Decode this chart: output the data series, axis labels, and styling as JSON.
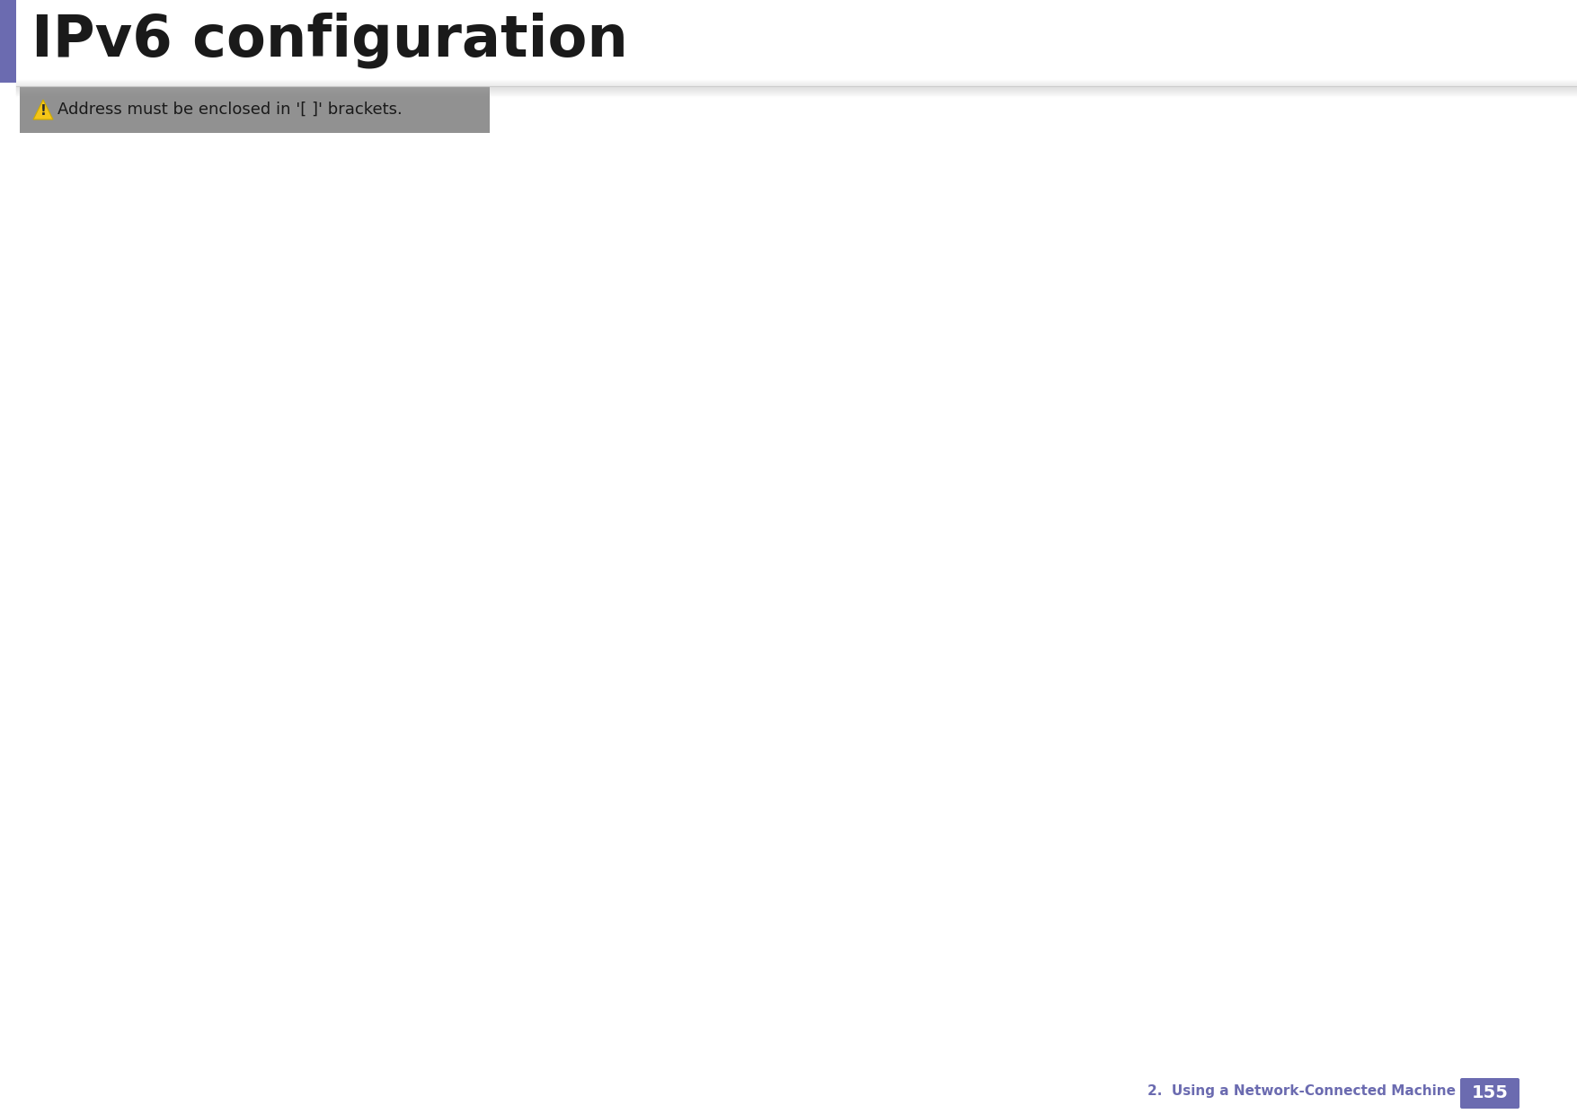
{
  "title": "IPv6 configuration",
  "title_color": "#1a1a1a",
  "title_fontsize": 46,
  "title_bold": true,
  "accent_bar_color": "#6b6bb0",
  "divider_color": "#cccccc",
  "notice_box_bg_top": "#d0d0d0",
  "notice_box_bg_mid": "#e8e8e8",
  "notice_box_bg_bot": "#d0d0d0",
  "notice_text": "Address must be enclosed in '[ ]' brackets.",
  "notice_text_color": "#1a1a1a",
  "notice_fontsize": 13,
  "warning_icon_color": "#f5c518",
  "footer_text": "2.  Using a Network-Connected Machine",
  "footer_number": "155",
  "footer_color": "#6b6bb0",
  "footer_box_color": "#6b6bb0",
  "footer_fontsize": 11,
  "page_bg": "#ffffff",
  "fig_width": 17.55,
  "fig_height": 12.4,
  "dpi": 100
}
